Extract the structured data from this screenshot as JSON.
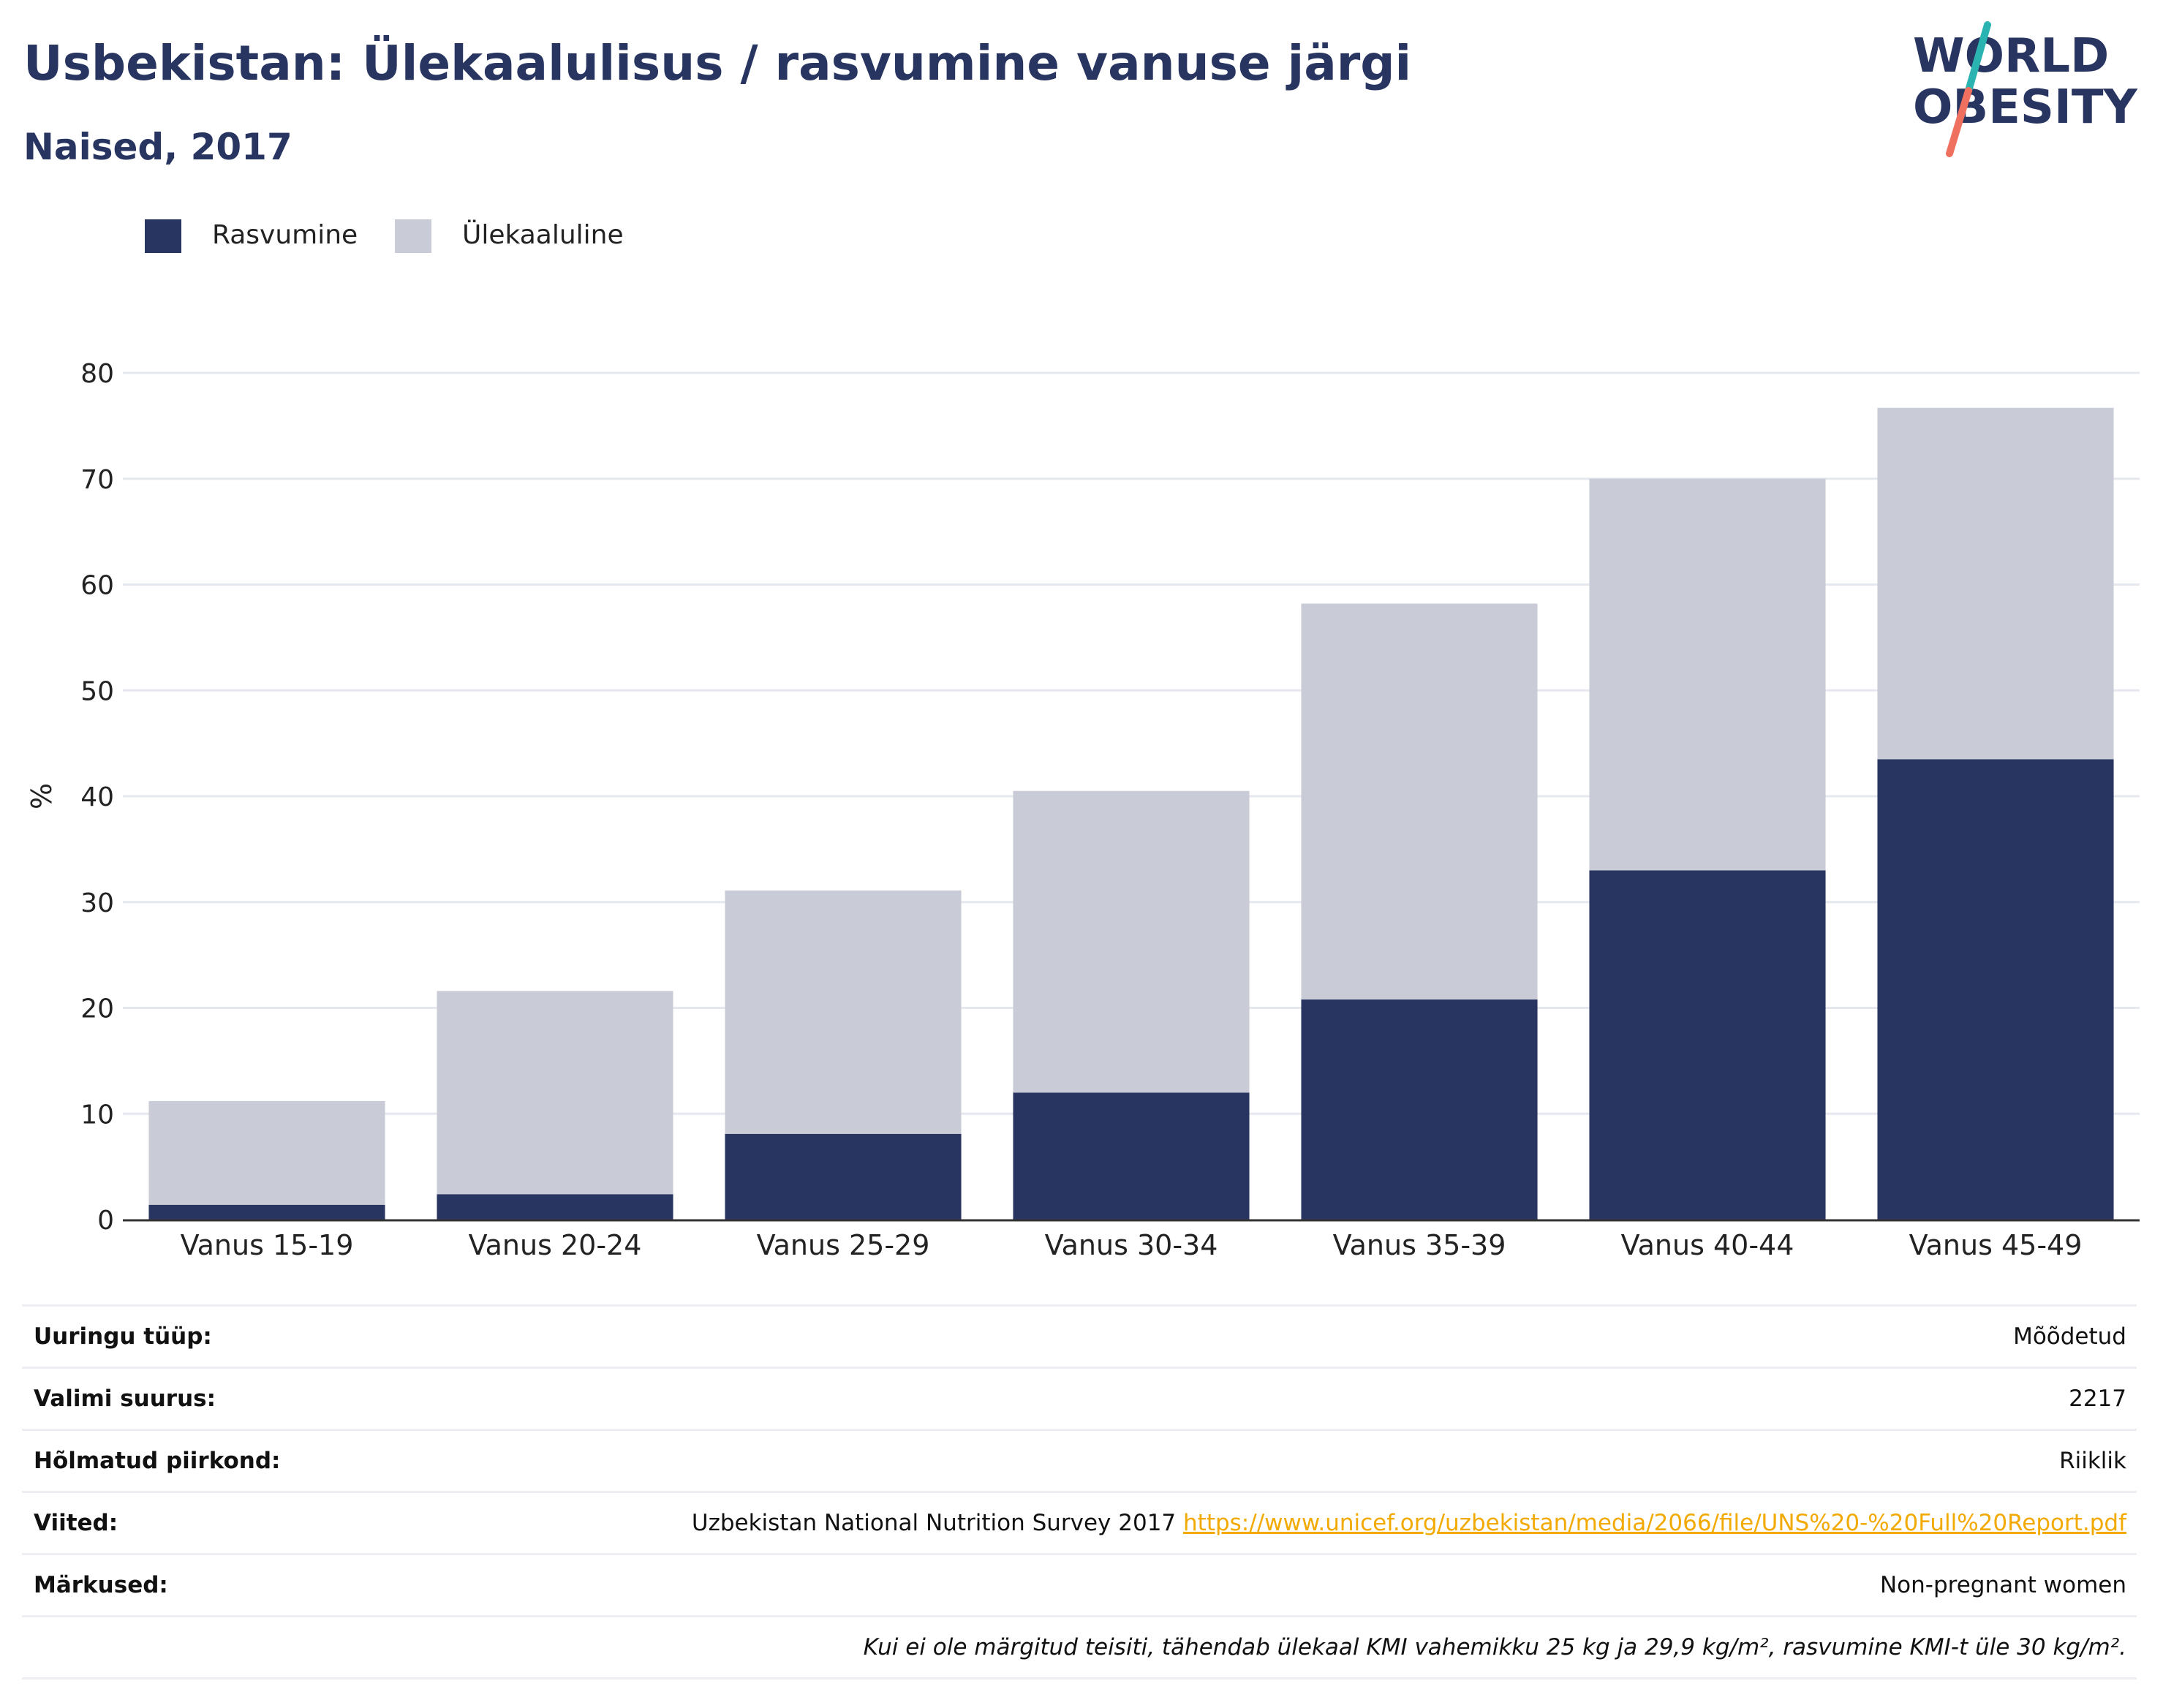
{
  "header": {
    "title": "Usbekistan: Ülekaalulisus / rasvumine vanuse järgi",
    "subtitle": "Naised, 2017"
  },
  "logo": {
    "line1": "WORLD",
    "line2": "OBESITY",
    "colors": {
      "text": "#283561",
      "slash_top": "#2bb3b1",
      "slash_bottom": "#f07060"
    }
  },
  "colors": {
    "obesity": "#283561",
    "overweight": "#c9cbd6",
    "grid": "#e6e8ef",
    "axis": "#333333",
    "link": "#f2a900"
  },
  "legend": {
    "items": [
      {
        "label": "Rasvumine",
        "color": "#283561"
      },
      {
        "label": "Ülekaaluline",
        "color": "#c9cbd6"
      }
    ]
  },
  "chart_data": {
    "type": "bar",
    "stacked": true,
    "categories": [
      "Vanus 15-19",
      "Vanus 20-24",
      "Vanus 25-29",
      "Vanus 30-34",
      "Vanus 35-39",
      "Vanus 40-44",
      "Vanus 45-49"
    ],
    "series": [
      {
        "name": "Rasvumine",
        "values": [
          1.4,
          2.4,
          8.1,
          12.0,
          20.8,
          33.0,
          43.5
        ]
      },
      {
        "name": "Ülekaaluline",
        "values": [
          9.8,
          19.2,
          23.0,
          28.5,
          37.4,
          37.0,
          33.2
        ]
      }
    ],
    "ylabel": "%",
    "ylim": [
      0,
      80
    ],
    "yticks": [
      0,
      10,
      20,
      30,
      40,
      50,
      60,
      70,
      80
    ],
    "grid": true,
    "legend_position": "top-left"
  },
  "meta": {
    "rows": [
      {
        "label": "Uuringu tüüp:",
        "value": "Mõõdetud"
      },
      {
        "label": "Valimi suurus:",
        "value": "2217"
      },
      {
        "label": "Hõlmatud piirkond:",
        "value": "Riiklik"
      },
      {
        "label": "Viited:",
        "value": "Uzbekistan National Nutrition Survey 2017",
        "link": "https://www.unicef.org/uzbekistan/media/2066/file/UNS%20-%20Full%20Report.pdf"
      },
      {
        "label": "Märkused:",
        "value": "Non-pregnant women"
      }
    ],
    "footnote": "Kui ei ole märgitud teisiti, tähendab ülekaal KMI vahemikku 25 kg ja 29,9 kg/m², rasvumine KMI-t üle 30 kg/m²."
  }
}
